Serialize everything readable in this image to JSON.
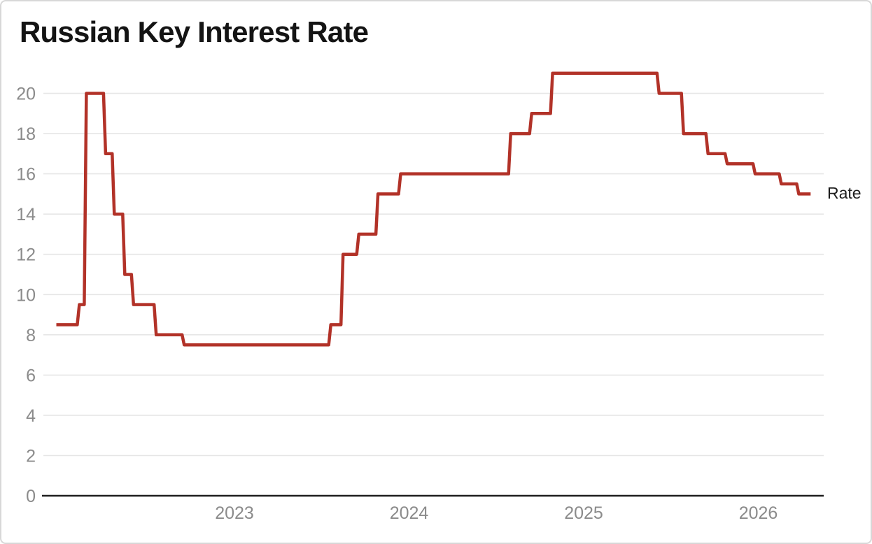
{
  "header": {
    "title": "Russian Key Interest Rate"
  },
  "colors": {
    "line": "#b23228",
    "grid": "#e6e6e6",
    "axis": "#1f1f1f",
    "tick": "#8b8b8b",
    "title": "#141414",
    "series_label": "#1d1d1d",
    "background": "#ffffff",
    "border": "#d8d8d8"
  },
  "chart_data": {
    "type": "line",
    "step": true,
    "title": "Russian Key Interest Rate",
    "xlabel": "",
    "ylabel": "",
    "unit": "percent",
    "grid": "horizontal",
    "legend_position": "right-end-of-line",
    "xticks": [
      2023,
      2024,
      2025,
      2026
    ],
    "yticks": [
      0,
      2,
      4,
      6,
      8,
      10,
      12,
      14,
      16,
      18,
      20
    ],
    "x_range": [
      2021.9,
      2026.4
    ],
    "y_range": [
      0,
      21.45
    ],
    "series": [
      {
        "name": "Rate",
        "color": "#b23228",
        "points_format": "[decimal_year, rate_percent] step-after change points",
        "points": [
          [
            2021.98,
            8.5
          ],
          [
            2022.1,
            9.5
          ],
          [
            2022.14,
            20
          ],
          [
            2022.25,
            17
          ],
          [
            2022.3,
            14
          ],
          [
            2022.36,
            11
          ],
          [
            2022.41,
            9.5
          ],
          [
            2022.54,
            8
          ],
          [
            2022.7,
            7.5
          ],
          [
            2023.54,
            8.5
          ],
          [
            2023.61,
            12
          ],
          [
            2023.7,
            13
          ],
          [
            2023.81,
            15
          ],
          [
            2023.94,
            16
          ],
          [
            2024.57,
            18
          ],
          [
            2024.69,
            19
          ],
          [
            2024.81,
            21
          ],
          [
            2025.42,
            20
          ],
          [
            2025.56,
            18
          ],
          [
            2025.7,
            17
          ],
          [
            2025.81,
            16.5
          ],
          [
            2025.97,
            16
          ],
          [
            2026.12,
            15.5
          ],
          [
            2026.22,
            15
          ],
          [
            2026.3,
            15
          ]
        ]
      }
    ]
  }
}
